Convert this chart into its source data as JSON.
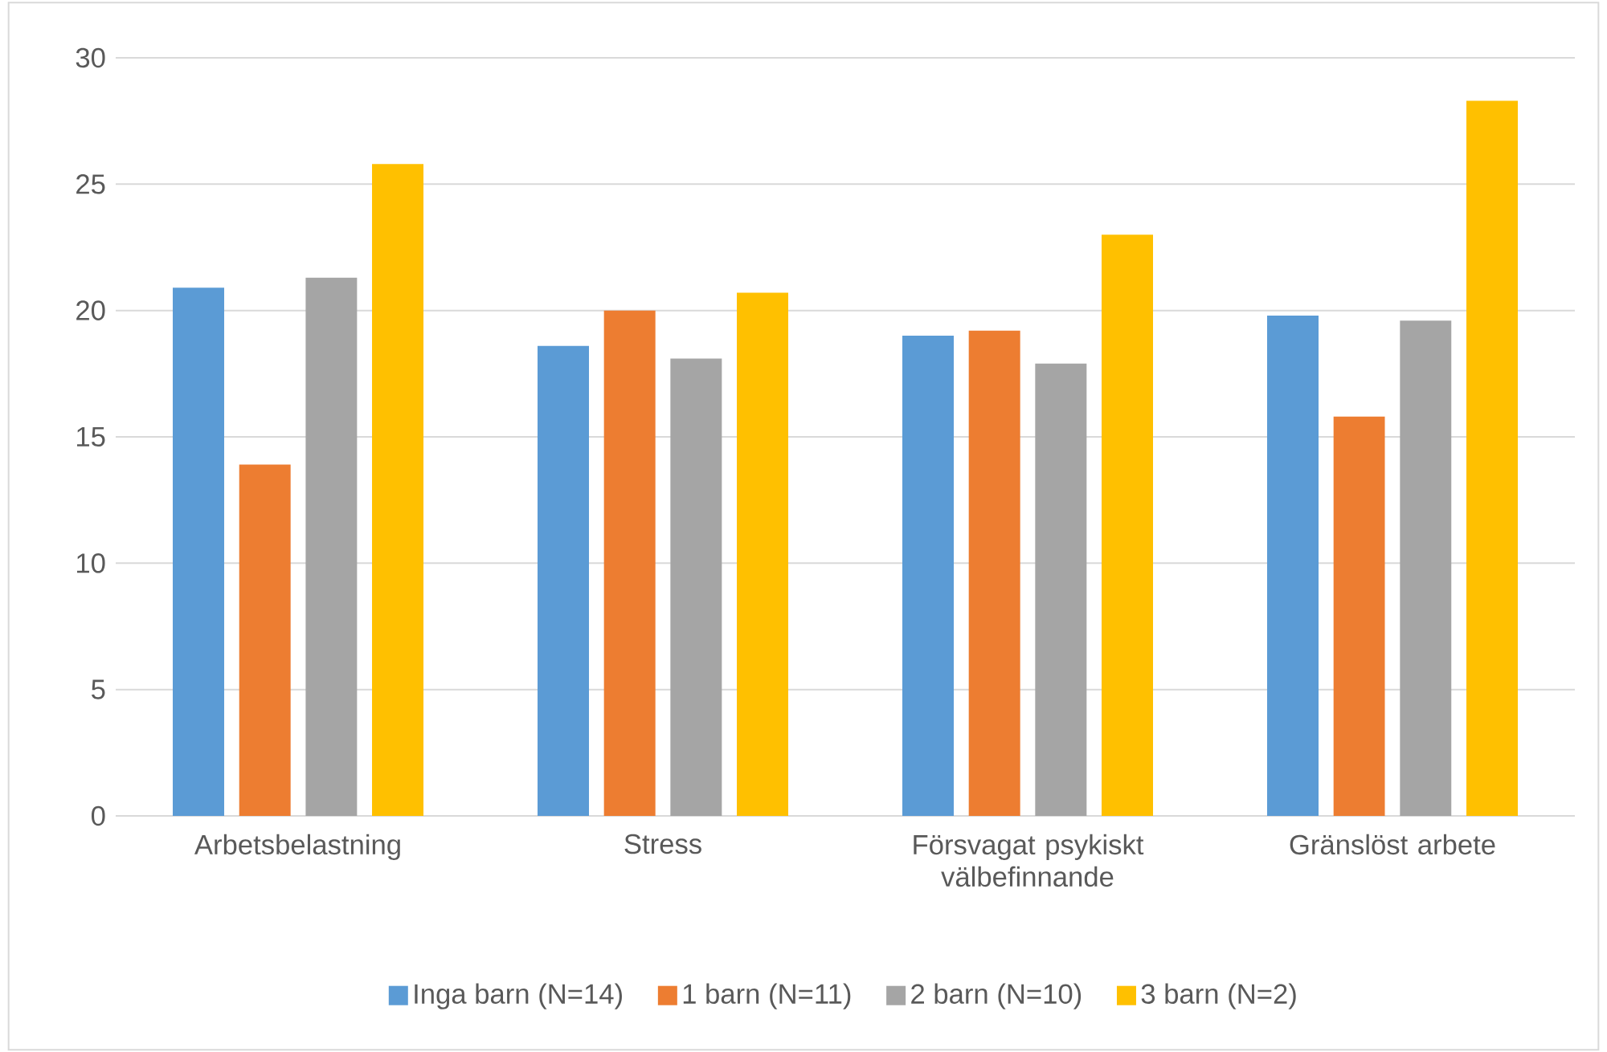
{
  "chart_data": {
    "type": "bar",
    "categories": [
      "Arbetsbelastning",
      "Stress",
      "Försvagat psykiskt välbefinnande",
      "Gränslöst arbete"
    ],
    "series": [
      {
        "name": "Inga barn (N=14)",
        "color": "#5b9bd5",
        "values": [
          20.9,
          18.6,
          19.0,
          19.8
        ]
      },
      {
        "name": "1 barn (N=11)",
        "color": "#ed7d31",
        "values": [
          13.9,
          20.0,
          19.2,
          15.8
        ]
      },
      {
        "name": "2 barn (N=10)",
        "color": "#a5a5a5",
        "values": [
          21.3,
          18.1,
          17.9,
          19.6
        ]
      },
      {
        "name": "3 barn (N=2)",
        "color": "#ffc000",
        "values": [
          25.8,
          20.7,
          23.0,
          28.3
        ]
      }
    ],
    "ylim": [
      0,
      30
    ],
    "yticks": [
      0,
      5,
      10,
      15,
      20,
      25,
      30
    ],
    "grid": "y",
    "legend": "bottom"
  }
}
